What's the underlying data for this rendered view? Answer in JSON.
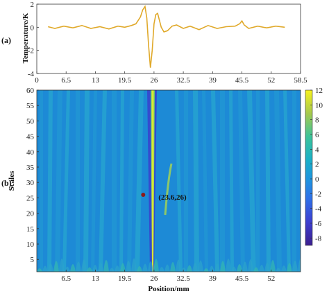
{
  "chart_data": [
    {
      "type": "line",
      "panel_label": "(a)",
      "ylabel": "Temperature/K",
      "xlim": [
        0,
        58.5
      ],
      "ylim": [
        -4,
        2
      ],
      "xticks": [
        "0",
        "6.5",
        "13",
        "19.5",
        "26",
        "32.5",
        "39",
        "45.5",
        "52",
        "58.5"
      ],
      "yticks": [
        "2",
        "0",
        "-2",
        "-4"
      ],
      "color": "#e0a92a",
      "series": [
        {
          "x": [
            2.5,
            4,
            6,
            8,
            10,
            12,
            14,
            16,
            18,
            19.5,
            21,
            22,
            23,
            23.5,
            24,
            24.4,
            24.8,
            25.2,
            25.6,
            26,
            26.4,
            26.8,
            27.2,
            27.6,
            28.2,
            29,
            30,
            31,
            32.5,
            34,
            36,
            38,
            40,
            42,
            44,
            45,
            45.5,
            46,
            47,
            49,
            51,
            53,
            55
          ],
          "y": [
            0.05,
            -0.1,
            0.1,
            -0.05,
            0.15,
            -0.1,
            0.05,
            -0.15,
            0.1,
            0.0,
            0.15,
            0.3,
            0.9,
            1.5,
            1.8,
            0.8,
            -1.6,
            -3.5,
            -2.0,
            0.3,
            1.1,
            1.2,
            0.6,
            0.0,
            -0.4,
            -0.3,
            0.1,
            0.2,
            -0.1,
            0.1,
            -0.2,
            0.15,
            -0.1,
            0.05,
            0.1,
            0.3,
            0.55,
            0.2,
            -0.1,
            0.1,
            -0.05,
            0.1,
            0.0
          ]
        }
      ]
    },
    {
      "type": "heatmap",
      "panel_label": "(b)",
      "xlabel": "Position/mm",
      "ylabel": "Scales",
      "xlim": [
        0,
        58.5
      ],
      "ylim": [
        1,
        60
      ],
      "xticks": [
        "6.5",
        "13",
        "19.5",
        "26",
        "32.5",
        "39",
        "45.5",
        "52"
      ],
      "yticks": [
        "5",
        "10",
        "15",
        "20",
        "25",
        "30",
        "35",
        "40",
        "45",
        "50",
        "55",
        "60"
      ],
      "colorbar_ticks": [
        "12",
        "10",
        "8",
        "6",
        "4",
        "2",
        "0",
        "-2",
        "-4",
        "-6",
        "-8"
      ],
      "colorbar_range": [
        -9,
        12
      ],
      "marker": {
        "x": 23.6,
        "y": 26,
        "label": "(23.6,26)"
      }
    }
  ]
}
